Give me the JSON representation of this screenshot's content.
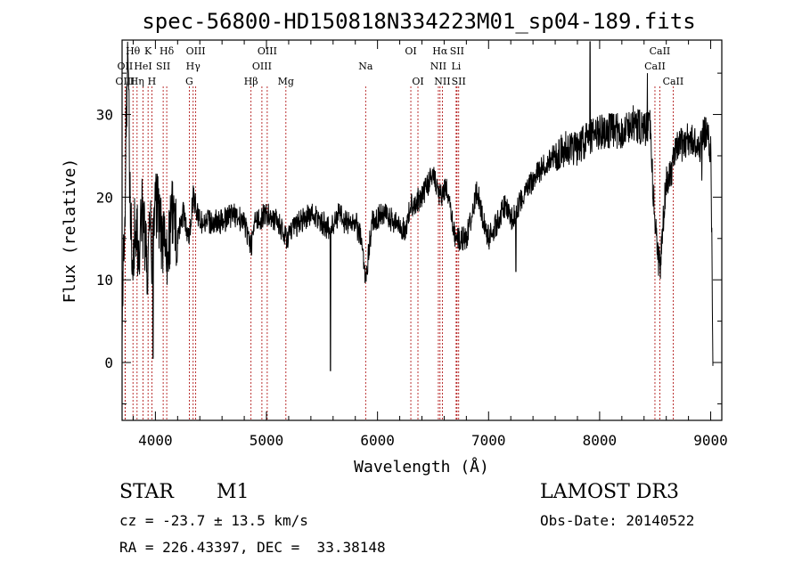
{
  "chart_data": {
    "type": "line",
    "title": "spec-56800-HD150818N334223M01_sp04-189.fits",
    "xlabel": "Wavelength (Å)",
    "ylabel": "Flux (relative)",
    "xlim": [
      3700,
      9100
    ],
    "ylim": [
      -7,
      39
    ],
    "x_ticks": [
      4000,
      5000,
      6000,
      7000,
      8000,
      9000
    ],
    "y_ticks": [
      0,
      10,
      20,
      30
    ],
    "grid": false,
    "line_color": "#000000",
    "marker_color": "#aa0000",
    "spectrum_nodes": [
      [
        3700,
        0
      ],
      [
        3710,
        15
      ],
      [
        3720,
        10
      ],
      [
        3735,
        28
      ],
      [
        3750,
        36
      ],
      [
        3770,
        22
      ],
      [
        3790,
        12
      ],
      [
        3820,
        17
      ],
      [
        3850,
        13
      ],
      [
        3880,
        18
      ],
      [
        3910,
        14
      ],
      [
        3934,
        10
      ],
      [
        3950,
        18
      ],
      [
        3968,
        12
      ],
      [
        3985,
        16
      ],
      [
        4000,
        20
      ],
      [
        4050,
        16
      ],
      [
        4102,
        12
      ],
      [
        4150,
        18
      ],
      [
        4200,
        15
      ],
      [
        4250,
        18
      ],
      [
        4300,
        15
      ],
      [
        4340,
        20
      ],
      [
        4400,
        17
      ],
      [
        4500,
        17
      ],
      [
        4600,
        17
      ],
      [
        4700,
        18
      ],
      [
        4800,
        17
      ],
      [
        4861,
        14
      ],
      [
        4900,
        17
      ],
      [
        5000,
        18
      ],
      [
        5100,
        17
      ],
      [
        5175,
        15
      ],
      [
        5300,
        17
      ],
      [
        5400,
        18
      ],
      [
        5500,
        17
      ],
      [
        5575,
        16
      ],
      [
        5650,
        18
      ],
      [
        5700,
        17
      ],
      [
        5800,
        17
      ],
      [
        5850,
        15
      ],
      [
        5893,
        10
      ],
      [
        5950,
        17
      ],
      [
        6050,
        18
      ],
      [
        6150,
        17
      ],
      [
        6250,
        16
      ],
      [
        6300,
        19
      ],
      [
        6400,
        20
      ],
      [
        6500,
        23
      ],
      [
        6563,
        20
      ],
      [
        6620,
        21
      ],
      [
        6700,
        15
      ],
      [
        6800,
        15
      ],
      [
        6850,
        18
      ],
      [
        6900,
        21
      ],
      [
        6950,
        17
      ],
      [
        7000,
        15
      ],
      [
        7080,
        17
      ],
      [
        7150,
        19
      ],
      [
        7200,
        17
      ],
      [
        7300,
        20
      ],
      [
        7400,
        22
      ],
      [
        7500,
        24
      ],
      [
        7600,
        25
      ],
      [
        7700,
        26
      ],
      [
        7800,
        26
      ],
      [
        7900,
        27
      ],
      [
        8000,
        28
      ],
      [
        8100,
        28
      ],
      [
        8200,
        28
      ],
      [
        8300,
        29
      ],
      [
        8400,
        28
      ],
      [
        8450,
        29
      ],
      [
        8498,
        17
      ],
      [
        8542,
        11
      ],
      [
        8600,
        22
      ],
      [
        8662,
        24
      ],
      [
        8700,
        26
      ],
      [
        8800,
        27
      ],
      [
        8900,
        26
      ],
      [
        8950,
        28
      ],
      [
        9000,
        26
      ],
      [
        9010,
        15
      ],
      [
        9020,
        0
      ]
    ],
    "spikes": [
      {
        "x": 5577,
        "y": -1,
        "label": ""
      },
      {
        "x": 7246,
        "y": 11,
        "label": ""
      },
      {
        "x": 7913,
        "y": 39,
        "label": ""
      },
      {
        "x": 8430,
        "y": 35,
        "label": ""
      },
      {
        "x": 8920,
        "y": 22,
        "label": ""
      },
      {
        "x": 3978,
        "y": 0.5,
        "label": ""
      },
      {
        "x": 3762,
        "y": 33,
        "label": ""
      }
    ],
    "line_markers": [
      {
        "name": "Hθ",
        "x": 3798,
        "row": 1
      },
      {
        "name": "OII",
        "x": 3727,
        "row": 2
      },
      {
        "name": "OIII",
        "x": 3727,
        "row": 3
      },
      {
        "name": "K",
        "x": 3934,
        "row": 1
      },
      {
        "name": "HeI",
        "x": 3889,
        "row": 2
      },
      {
        "name": "Hη",
        "x": 3835,
        "row": 3
      },
      {
        "name": "SII",
        "x": 4070,
        "row": 2
      },
      {
        "name": "H",
        "x": 3968,
        "row": 3
      },
      {
        "name": "Hδ",
        "x": 4102,
        "row": 1
      },
      {
        "name": "OIII",
        "x": 4363,
        "row": 1
      },
      {
        "name": "Hγ",
        "x": 4340,
        "row": 2
      },
      {
        "name": "G",
        "x": 4305,
        "row": 3
      },
      {
        "name": "Hβ",
        "x": 4861,
        "row": 3
      },
      {
        "name": "OIII",
        "x": 5007,
        "row": 1
      },
      {
        "name": "OIII",
        "x": 4959,
        "row": 2
      },
      {
        "name": "Mg",
        "x": 5175,
        "row": 3
      },
      {
        "name": "Na",
        "x": 5893,
        "row": 2
      },
      {
        "name": "OI",
        "x": 6300,
        "row": 1
      },
      {
        "name": "OI",
        "x": 6364,
        "row": 3
      },
      {
        "name": "Hα",
        "x": 6563,
        "row": 1
      },
      {
        "name": "NII",
        "x": 6548,
        "row": 2
      },
      {
        "name": "NII",
        "x": 6584,
        "row": 3
      },
      {
        "name": "SII",
        "x": 6716,
        "row": 1
      },
      {
        "name": "Li",
        "x": 6708,
        "row": 2
      },
      {
        "name": "SII",
        "x": 6731,
        "row": 3
      },
      {
        "name": "CaII",
        "x": 8542,
        "row": 1
      },
      {
        "name": "CaII",
        "x": 8498,
        "row": 2
      },
      {
        "name": "CaII",
        "x": 8662,
        "row": 3
      }
    ]
  },
  "info": {
    "object_class": "STAR",
    "subclass": "M1",
    "survey": "LAMOST DR3",
    "redshift": "cz = -23.7 ± 13.5 km/s",
    "obs_date": "Obs-Date: 20140522",
    "coords": "RA = 226.43397, DEC =  33.38148"
  }
}
